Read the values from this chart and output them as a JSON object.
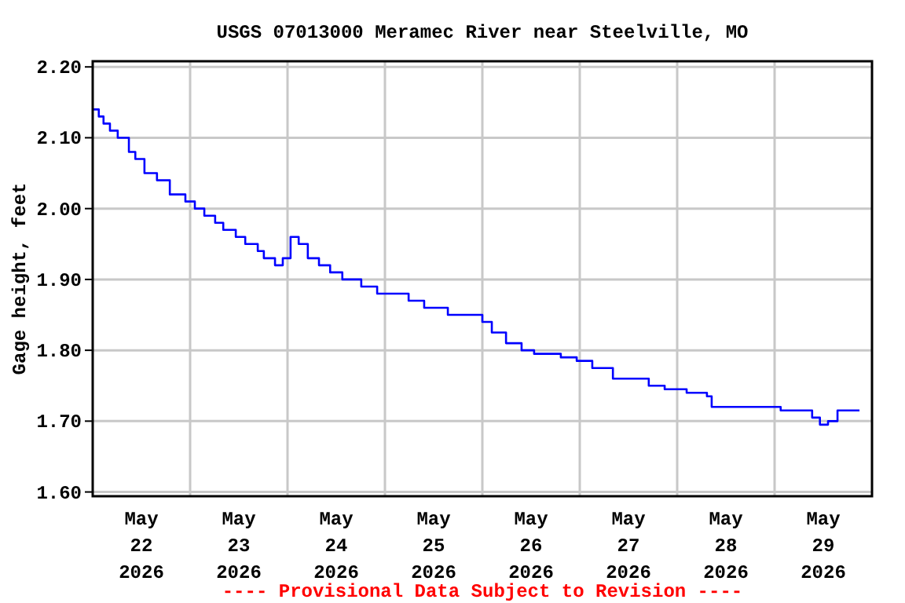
{
  "chart_data": {
    "type": "step",
    "title": "USGS 07013000 Meramec River near Steelville, MO",
    "ylabel": "Gage height, feet",
    "annotations": [
      "---- Provisional Data Subject to Revision ----"
    ],
    "x": [
      "2026-05-22T00:00",
      "2026-05-22T01:30",
      "2026-05-22T02:40",
      "2026-05-22T04:15",
      "2026-05-22T06:10",
      "2026-05-22T08:55",
      "2026-05-22T10:30",
      "2026-05-22T12:45",
      "2026-05-22T15:50",
      "2026-05-22T19:00",
      "2026-05-22T22:50",
      "2026-05-23T01:10",
      "2026-05-23T03:30",
      "2026-05-23T06:10",
      "2026-05-23T08:10",
      "2026-05-23T11:15",
      "2026-05-23T13:35",
      "2026-05-23T16:40",
      "2026-05-23T18:10",
      "2026-05-23T20:55",
      "2026-05-23T22:50",
      "2026-05-24T00:45",
      "2026-05-24T02:45",
      "2026-05-24T05:00",
      "2026-05-24T07:45",
      "2026-05-24T10:30",
      "2026-05-24T13:30",
      "2026-05-24T18:10",
      "2026-05-24T22:05",
      "2026-05-25T01:55",
      "2026-05-25T05:50",
      "2026-05-25T09:40",
      "2026-05-25T15:30",
      "2026-05-25T17:25",
      "2026-05-26T00:00",
      "2026-05-26T02:20",
      "2026-05-26T05:50",
      "2026-05-26T09:40",
      "2026-05-26T12:45",
      "2026-05-26T19:20",
      "2026-05-26T23:15",
      "2026-05-27T03:05",
      "2026-05-27T08:10",
      "2026-05-27T13:10",
      "2026-05-27T17:00",
      "2026-05-27T20:55",
      "2026-05-28T02:20",
      "2026-05-28T07:20",
      "2026-05-28T08:30",
      "2026-05-28T13:55",
      "2026-05-28T20:05",
      "2026-05-29T01:30",
      "2026-05-29T06:35",
      "2026-05-29T09:15",
      "2026-05-29T11:10",
      "2026-05-29T13:10",
      "2026-05-29T15:30",
      "2026-05-29T20:55"
    ],
    "series": [
      {
        "color": "#0000ff",
        "values": [
          2.14,
          2.13,
          2.12,
          2.11,
          2.1,
          2.08,
          2.07,
          2.05,
          2.04,
          2.02,
          2.01,
          2.0,
          1.99,
          1.98,
          1.97,
          1.96,
          1.95,
          1.94,
          1.93,
          1.92,
          1.93,
          1.96,
          1.95,
          1.93,
          1.92,
          1.91,
          1.9,
          1.89,
          1.88,
          1.88,
          1.87,
          1.86,
          1.85,
          1.85,
          1.84,
          1.825,
          1.81,
          1.8,
          1.795,
          1.79,
          1.785,
          1.775,
          1.76,
          1.76,
          1.75,
          1.745,
          1.74,
          1.735,
          1.72,
          1.72,
          1.72,
          1.715,
          1.715,
          1.705,
          1.695,
          1.7,
          1.715,
          1.715
        ]
      }
    ],
    "xlim": [
      "2026-05-22",
      "2026-05-30"
    ],
    "xticks": [
      {
        "value": "2026-05-22T12:00",
        "label": "May\n22\n2026"
      },
      {
        "value": "2026-05-23",
        "label": null
      },
      {
        "value": "2026-05-23T12:00",
        "label": "May\n23\n2026"
      },
      {
        "value": "2026-05-24",
        "label": null
      },
      {
        "value": "2026-05-24T12:00",
        "label": "May\n24\n2026"
      },
      {
        "value": "2026-05-25",
        "label": null
      },
      {
        "value": "2026-05-25T12:00",
        "label": "May\n25\n2026"
      },
      {
        "value": "2026-05-26",
        "label": null
      },
      {
        "value": "2026-05-26T12:00",
        "label": "May\n26\n2026"
      },
      {
        "value": "2026-05-27",
        "label": null
      },
      {
        "value": "2026-05-27T12:00",
        "label": "May\n27\n2026"
      },
      {
        "value": "2026-05-28",
        "label": null
      },
      {
        "value": "2026-05-28T12:00",
        "label": "May\n28\n2026"
      },
      {
        "value": "2026-05-29",
        "label": null
      },
      {
        "value": "2026-05-29T12:00",
        "label": "May\n29\n2026"
      }
    ],
    "ylim": [
      1.594,
      2.208
    ],
    "yticks": [
      {
        "value": 1.6,
        "label": "1.60"
      },
      {
        "value": 1.7,
        "label": "1.70"
      },
      {
        "value": 1.8,
        "label": "1.80"
      },
      {
        "value": 1.9,
        "label": "1.90"
      },
      {
        "value": 2.0,
        "label": "2.00"
      },
      {
        "value": 2.1,
        "label": "2.10"
      },
      {
        "value": 2.2,
        "label": "2.20"
      }
    ],
    "grid": true
  }
}
